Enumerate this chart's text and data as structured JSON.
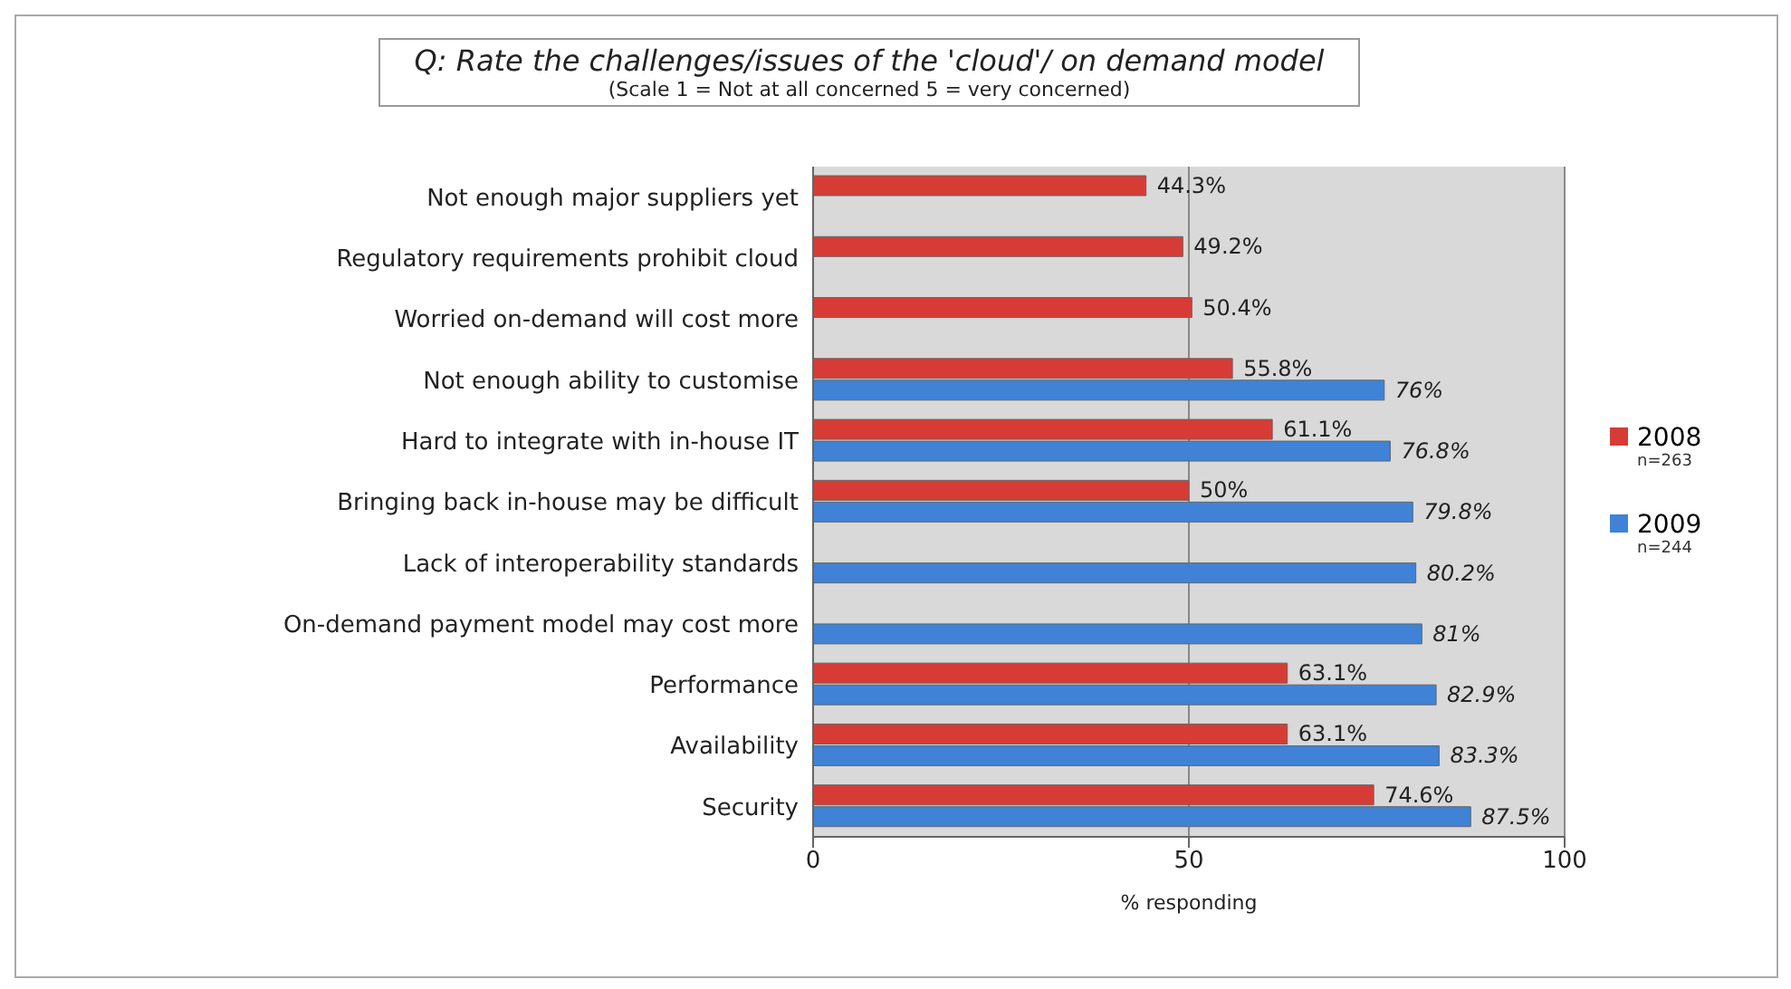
{
  "chart_data": {
    "type": "bar",
    "orientation": "horizontal",
    "title": "Q: Rate the challenges/issues of the 'cloud'/ on demand model",
    "subtitle": "(Scale 1 = Not at all concerned 5 = very concerned)",
    "xlabel": "% responding",
    "categories": [
      "Not enough major suppliers yet",
      "Regulatory requirements prohibit cloud",
      "Worried on-demand will cost more",
      "Not enough ability to customise",
      "Hard to integrate with  in-house IT",
      "Bringing back in-house may be difficult",
      "Lack of interoperability standards",
      "On-demand payment model may cost more",
      "Performance",
      "Availability",
      "Security"
    ],
    "series": [
      {
        "name": "2008",
        "color": "#d63c35",
        "values": [
          44.3,
          49.2,
          50.4,
          55.8,
          61.1,
          50,
          null,
          null,
          63.1,
          63.1,
          74.6
        ],
        "value_labels": [
          "44.3%",
          "49.2%",
          "50.4%",
          "55.8%",
          "61.1%",
          "50%",
          null,
          null,
          "63.1%",
          "63.1%",
          "74.6%"
        ]
      },
      {
        "name": "2009",
        "color": "#3f82d6",
        "values": [
          null,
          null,
          null,
          76,
          76.8,
          79.8,
          80.2,
          81,
          82.9,
          83.3,
          87.5
        ],
        "value_labels": [
          null,
          null,
          null,
          "76%",
          "76.8%",
          "79.8%",
          "80.2%",
          "81%",
          "82.9%",
          "83.3%",
          "87.5%"
        ]
      }
    ],
    "xlim": [
      0,
      100
    ],
    "xticks": [
      0,
      50,
      100
    ],
    "grid": "x",
    "legend": "right",
    "annotations": [
      "n=263",
      "n=244"
    ]
  }
}
